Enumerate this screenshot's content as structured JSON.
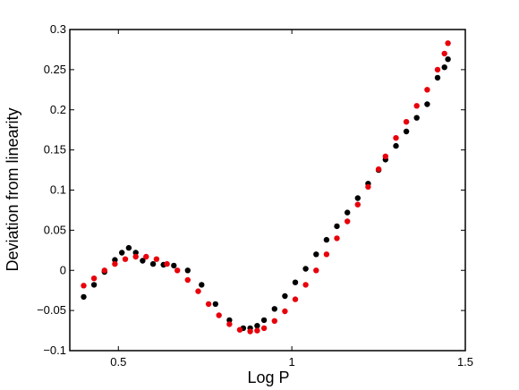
{
  "chart_data": {
    "type": "scatter",
    "xlabel": "Log P",
    "ylabel": "Deviation from linearity",
    "xlim": [
      0.36,
      1.5
    ],
    "ylim": [
      -0.1,
      0.3
    ],
    "xticks": [
      0.5,
      1,
      1.5
    ],
    "xtick_labels": [
      "0.5",
      "1",
      "1.5"
    ],
    "yticks": [
      -0.1,
      -0.05,
      0,
      0.05,
      0.1,
      0.15,
      0.2,
      0.25,
      0.3
    ],
    "ytick_labels": [
      "−0.1",
      "−0.05",
      "0",
      "0.05",
      "0.1",
      "0.15",
      "0.2",
      "0.25",
      "0.3"
    ],
    "grid": false,
    "legend": "none",
    "series": [
      {
        "color": "#000000",
        "x": [
          0.4,
          0.43,
          0.46,
          0.49,
          0.51,
          0.53,
          0.55,
          0.57,
          0.6,
          0.63,
          0.66,
          0.7,
          0.74,
          0.78,
          0.82,
          0.86,
          0.88,
          0.9,
          0.92,
          0.95,
          0.98,
          1.01,
          1.04,
          1.07,
          1.1,
          1.13,
          1.16,
          1.19,
          1.22,
          1.25,
          1.27,
          1.3,
          1.33,
          1.36,
          1.39,
          1.42,
          1.44,
          1.45
        ],
        "y": [
          -0.033,
          -0.018,
          -0.002,
          0.013,
          0.022,
          0.028,
          0.022,
          0.012,
          0.008,
          0.007,
          0.006,
          0.0,
          -0.018,
          -0.042,
          -0.062,
          -0.072,
          -0.072,
          -0.069,
          -0.062,
          -0.048,
          -0.032,
          -0.015,
          0.002,
          0.02,
          0.038,
          0.055,
          0.072,
          0.09,
          0.108,
          0.125,
          0.138,
          0.155,
          0.173,
          0.19,
          0.207,
          0.24,
          0.253,
          0.263
        ]
      },
      {
        "color": "#e8000b",
        "x": [
          0.4,
          0.43,
          0.46,
          0.49,
          0.52,
          0.55,
          0.58,
          0.61,
          0.64,
          0.67,
          0.7,
          0.73,
          0.76,
          0.79,
          0.82,
          0.85,
          0.88,
          0.9,
          0.92,
          0.95,
          0.98,
          1.01,
          1.04,
          1.07,
          1.1,
          1.13,
          1.16,
          1.19,
          1.22,
          1.25,
          1.27,
          1.3,
          1.33,
          1.36,
          1.39,
          1.42,
          1.44,
          1.45
        ],
        "y": [
          -0.019,
          -0.01,
          0.0,
          0.008,
          0.014,
          0.017,
          0.017,
          0.014,
          0.008,
          0.0,
          -0.012,
          -0.026,
          -0.042,
          -0.056,
          -0.067,
          -0.074,
          -0.076,
          -0.075,
          -0.072,
          -0.063,
          -0.051,
          -0.036,
          -0.018,
          0.0,
          0.02,
          0.04,
          0.061,
          0.082,
          0.104,
          0.126,
          0.142,
          0.165,
          0.185,
          0.205,
          0.225,
          0.25,
          0.27,
          0.283
        ]
      }
    ]
  }
}
